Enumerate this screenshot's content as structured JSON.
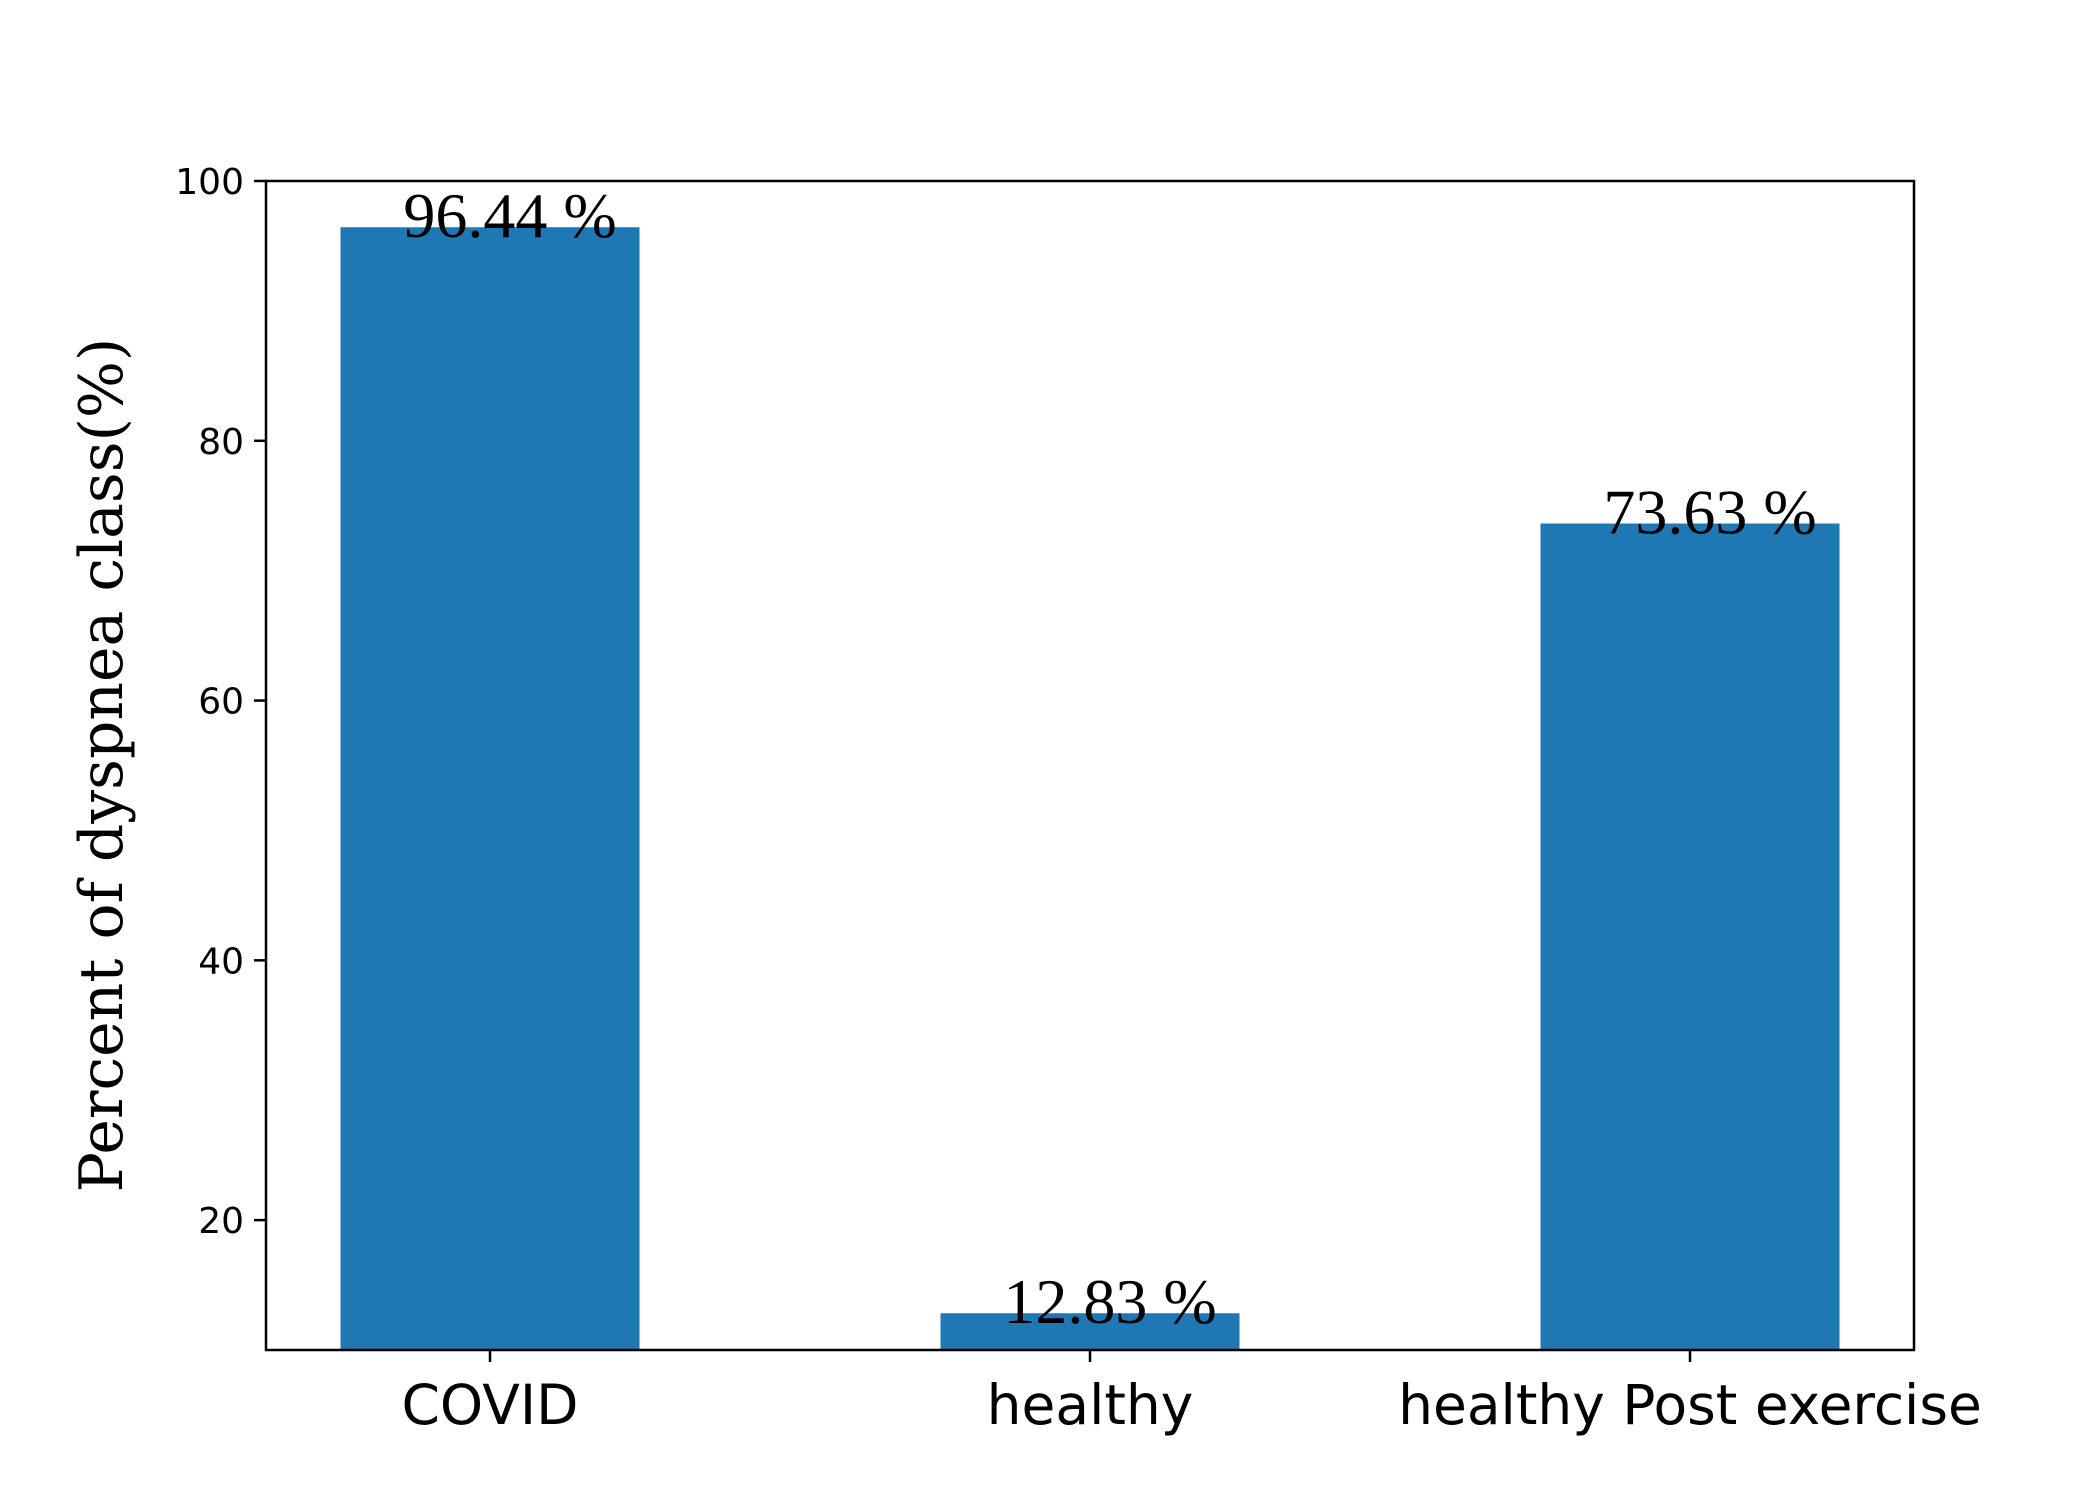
{
  "chart_data": {
    "type": "bar",
    "categories": [
      "COVID",
      "healthy",
      "healthy Post exercise"
    ],
    "values": [
      96.44,
      12.83,
      73.63
    ],
    "value_labels": [
      "96.44 %",
      "12.83 %",
      "73.63 %"
    ],
    "title": "",
    "xlabel": "",
    "ylabel": "Percent of dyspnea class(%)",
    "ylim": [
      10,
      100
    ],
    "yticks": [
      20,
      40,
      60,
      80,
      100
    ],
    "bar_color": "#1f77b4",
    "grid": false,
    "legend": "none"
  }
}
